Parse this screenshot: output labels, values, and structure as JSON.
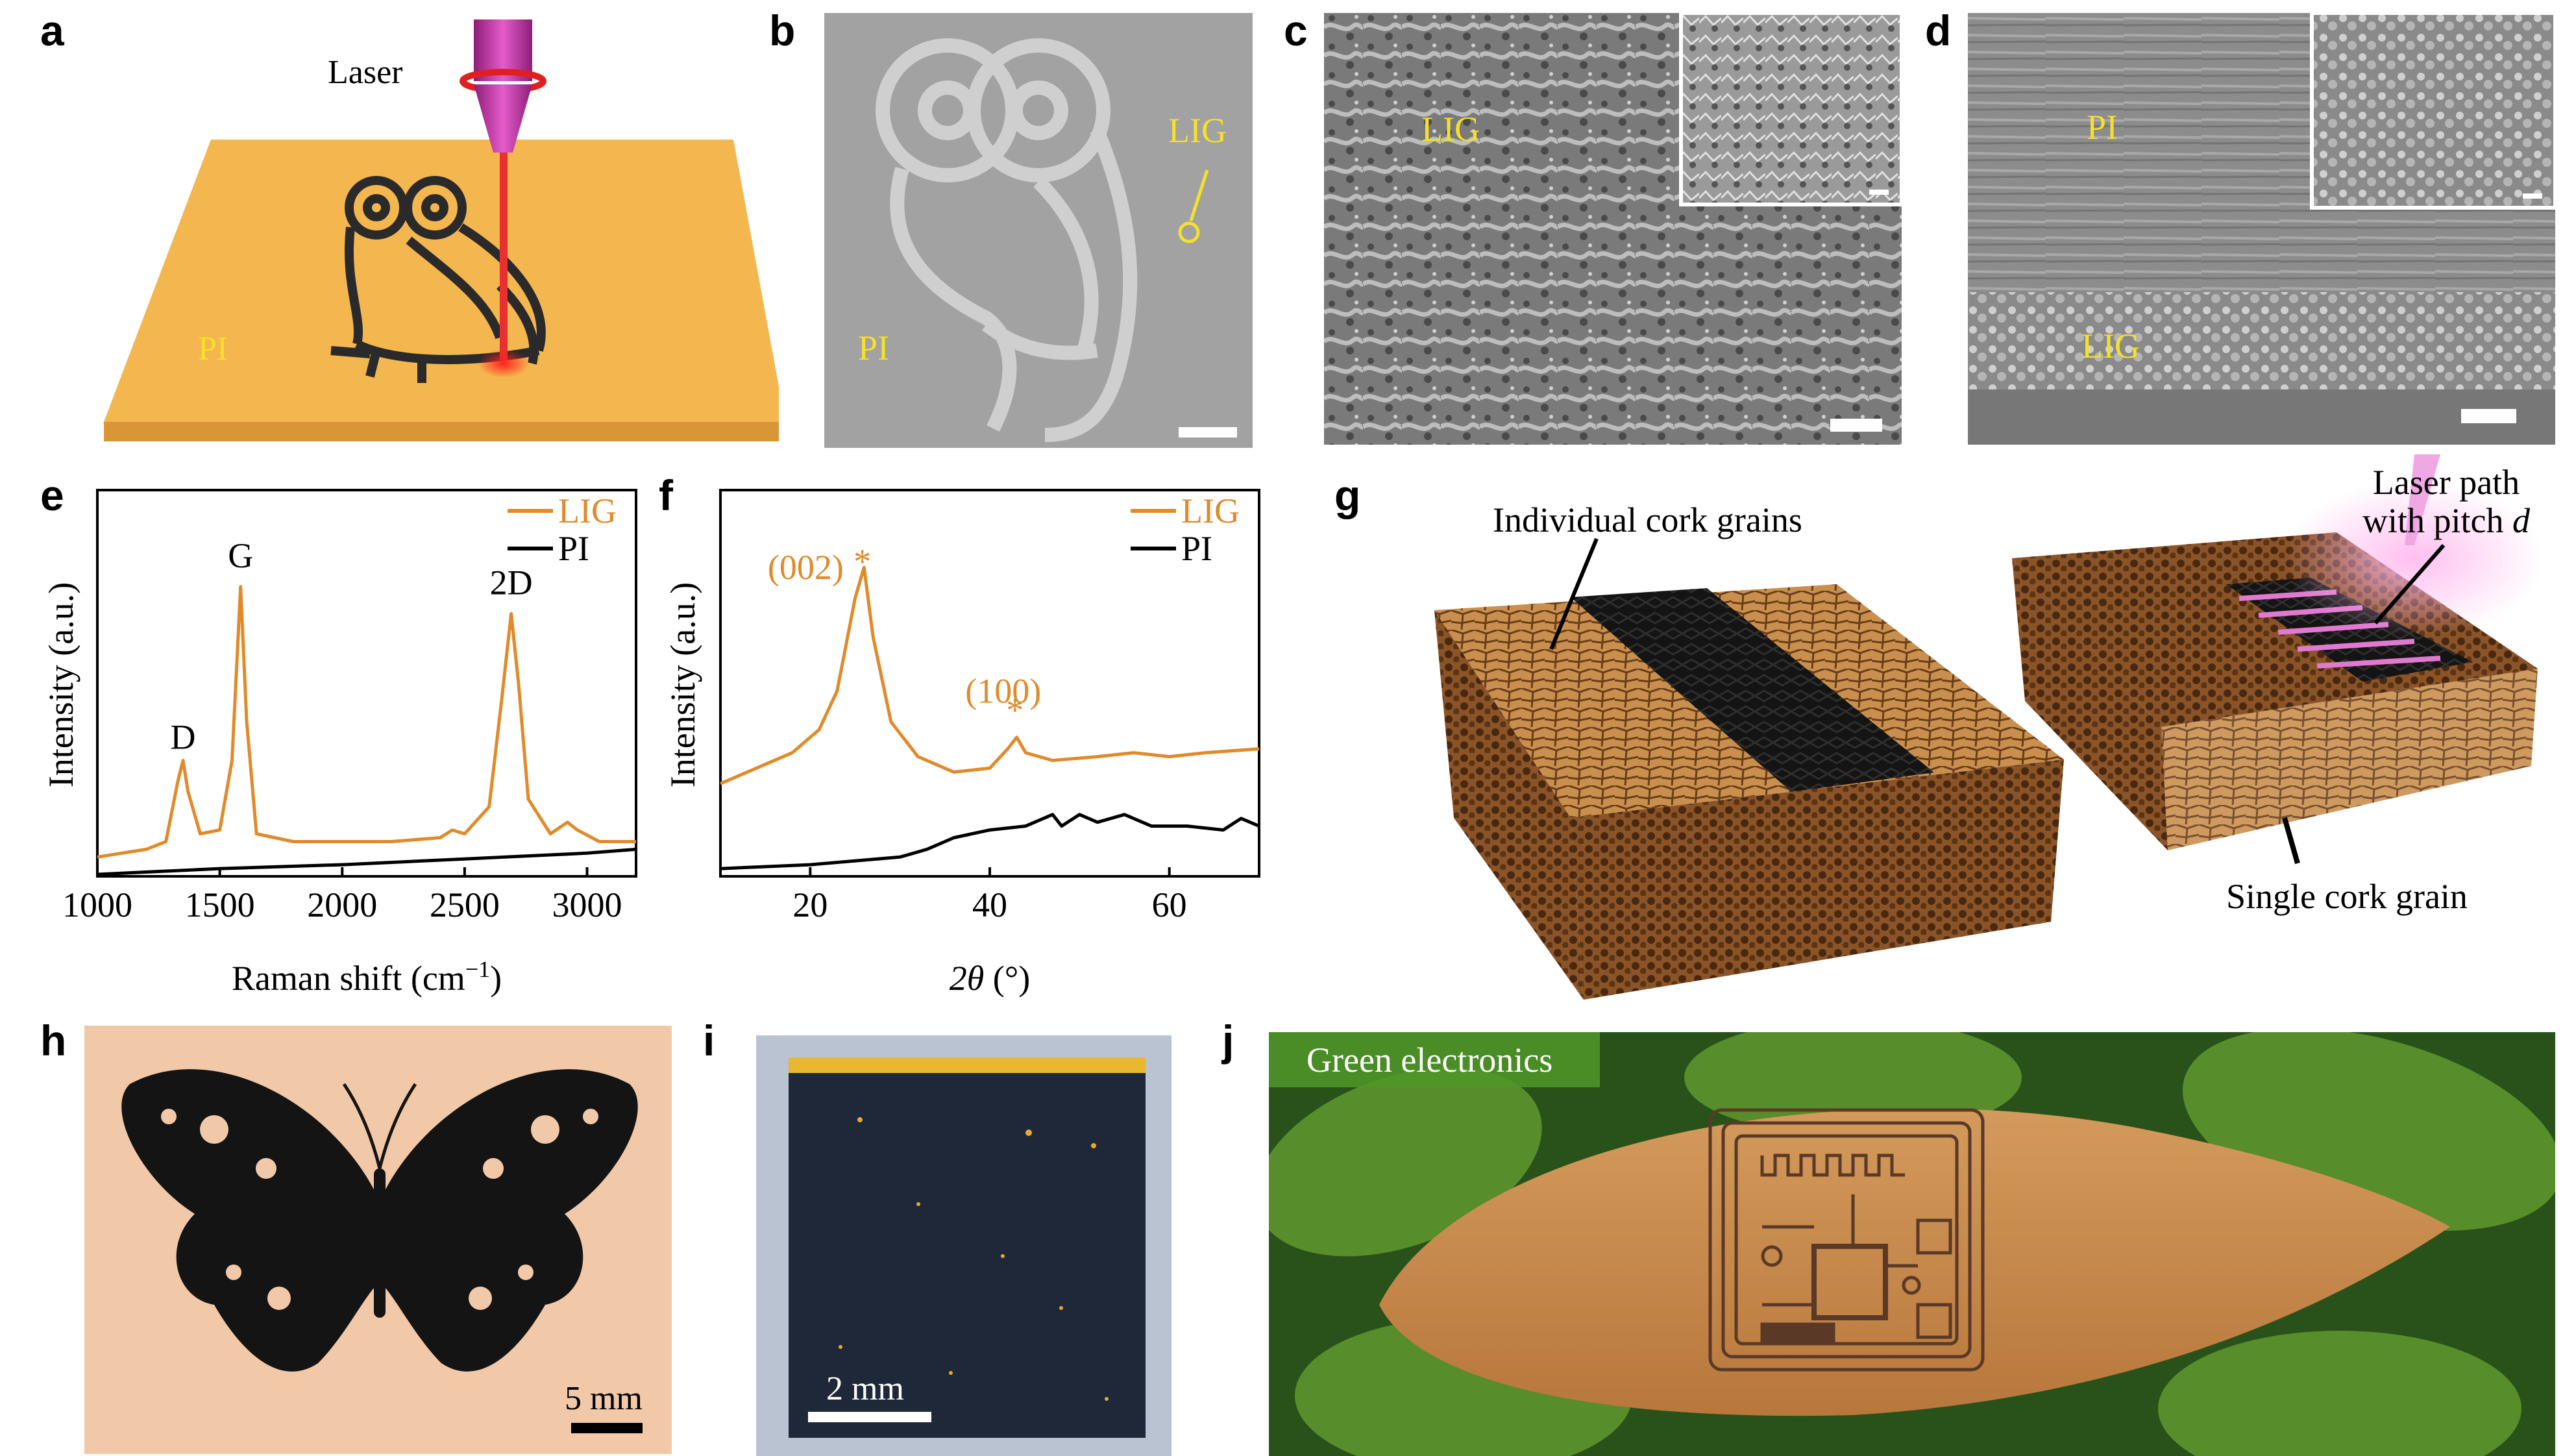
{
  "panel_labels": {
    "a": "a",
    "b": "b",
    "c": "c",
    "d": "d",
    "e": "e",
    "f": "f",
    "g": "g",
    "h": "h",
    "i": "i",
    "j": "j"
  },
  "panel_a": {
    "laser_label": "Laser",
    "substrate_label": "PI"
  },
  "panel_b": {
    "lig_label": "LIG",
    "pi_label": "PI"
  },
  "panel_c": {
    "lig_label": "LIG"
  },
  "panel_d": {
    "pi_label": "PI",
    "lig_label": "LIG"
  },
  "panel_g": {
    "label_individual": "Individual cork grains",
    "label_laser_line1": "Laser path",
    "label_laser_line2": "with pitch",
    "label_pitch_symbol": "d",
    "label_single": "Single cork grain"
  },
  "panel_h": {
    "scale_label": "5 mm"
  },
  "panel_i": {
    "scale_label": "2 mm"
  },
  "panel_j": {
    "title": "Green electronics"
  },
  "colors": {
    "lig": "#E08A2A",
    "pi": "#000000",
    "substrate": "#F2B64A",
    "sem_label": "#F5E02A",
    "laser": "#C83CA8"
  },
  "chart_data": [
    {
      "type": "line",
      "panel": "e",
      "xlabel": "Raman shift (cm",
      "xlabel_sup": "−1",
      "xlabel_end": ")",
      "ylabel": "Intensity (a.u.)",
      "xlim": [
        1000,
        3200
      ],
      "ylim": [
        0,
        1
      ],
      "xticks": [
        1000,
        1500,
        2000,
        2500,
        3000
      ],
      "xtick_labels": [
        "1000",
        "1500",
        "2000",
        "2500",
        "3000"
      ],
      "peak_labels": [
        {
          "text": "D",
          "x": 1350,
          "y": 0.33
        },
        {
          "text": "G",
          "x": 1585,
          "y": 0.8
        },
        {
          "text": "2D",
          "x": 2690,
          "y": 0.73
        }
      ],
      "series": [
        {
          "name": "LIG",
          "points": [
            [
              1000,
              0.05
            ],
            [
              1100,
              0.06
            ],
            [
              1200,
              0.07
            ],
            [
              1280,
              0.09
            ],
            [
              1330,
              0.25
            ],
            [
              1350,
              0.3
            ],
            [
              1370,
              0.22
            ],
            [
              1420,
              0.11
            ],
            [
              1500,
              0.12
            ],
            [
              1550,
              0.3
            ],
            [
              1585,
              0.75
            ],
            [
              1610,
              0.4
            ],
            [
              1650,
              0.11
            ],
            [
              1800,
              0.09
            ],
            [
              2000,
              0.09
            ],
            [
              2200,
              0.09
            ],
            [
              2400,
              0.1
            ],
            [
              2450,
              0.12
            ],
            [
              2500,
              0.11
            ],
            [
              2600,
              0.18
            ],
            [
              2650,
              0.45
            ],
            [
              2690,
              0.68
            ],
            [
              2720,
              0.5
            ],
            [
              2760,
              0.2
            ],
            [
              2850,
              0.11
            ],
            [
              2920,
              0.14
            ],
            [
              2960,
              0.12
            ],
            [
              3050,
              0.09
            ],
            [
              3200,
              0.09
            ]
          ]
        },
        {
          "name": "PI",
          "points": [
            [
              1000,
              0.005
            ],
            [
              1500,
              0.02
            ],
            [
              2000,
              0.03
            ],
            [
              2500,
              0.045
            ],
            [
              3000,
              0.06
            ],
            [
              3200,
              0.07
            ]
          ]
        }
      ]
    },
    {
      "type": "line",
      "panel": "f",
      "xlabel_symbol": "2θ",
      "xlabel_unit": " (°)",
      "ylabel": "Intensity (a.u.)",
      "xlim": [
        10,
        70
      ],
      "ylim": [
        0,
        1
      ],
      "xticks": [
        20,
        40,
        60
      ],
      "xtick_labels": [
        "20",
        "40",
        "60"
      ],
      "peak_labels": [
        {
          "text": "(002)",
          "x": 19.5,
          "y": 0.77
        },
        {
          "text": "*",
          "x": 25.8,
          "y": 0.785
        },
        {
          "text": "(100)",
          "x": 41.5,
          "y": 0.45
        },
        {
          "text": "*",
          "x": 42.8,
          "y": 0.4
        }
      ],
      "series": [
        {
          "name": "LIG",
          "points": [
            [
              10,
              0.24
            ],
            [
              14,
              0.28
            ],
            [
              18,
              0.32
            ],
            [
              21,
              0.38
            ],
            [
              23,
              0.48
            ],
            [
              25,
              0.72
            ],
            [
              26,
              0.8
            ],
            [
              27,
              0.62
            ],
            [
              29,
              0.4
            ],
            [
              32,
              0.31
            ],
            [
              36,
              0.27
            ],
            [
              40,
              0.28
            ],
            [
              42,
              0.33
            ],
            [
              43,
              0.36
            ],
            [
              44,
              0.32
            ],
            [
              47,
              0.3
            ],
            [
              52,
              0.31
            ],
            [
              56,
              0.32
            ],
            [
              60,
              0.31
            ],
            [
              64,
              0.32
            ],
            [
              70,
              0.33
            ]
          ]
        },
        {
          "name": "PI",
          "points": [
            [
              10,
              0.02
            ],
            [
              20,
              0.03
            ],
            [
              30,
              0.05
            ],
            [
              33,
              0.07
            ],
            [
              36,
              0.1
            ],
            [
              40,
              0.12
            ],
            [
              44,
              0.13
            ],
            [
              47,
              0.16
            ],
            [
              48,
              0.13
            ],
            [
              50,
              0.16
            ],
            [
              52,
              0.14
            ],
            [
              55,
              0.16
            ],
            [
              58,
              0.13
            ],
            [
              62,
              0.13
            ],
            [
              66,
              0.12
            ],
            [
              68,
              0.15
            ],
            [
              70,
              0.13
            ]
          ]
        }
      ]
    }
  ]
}
